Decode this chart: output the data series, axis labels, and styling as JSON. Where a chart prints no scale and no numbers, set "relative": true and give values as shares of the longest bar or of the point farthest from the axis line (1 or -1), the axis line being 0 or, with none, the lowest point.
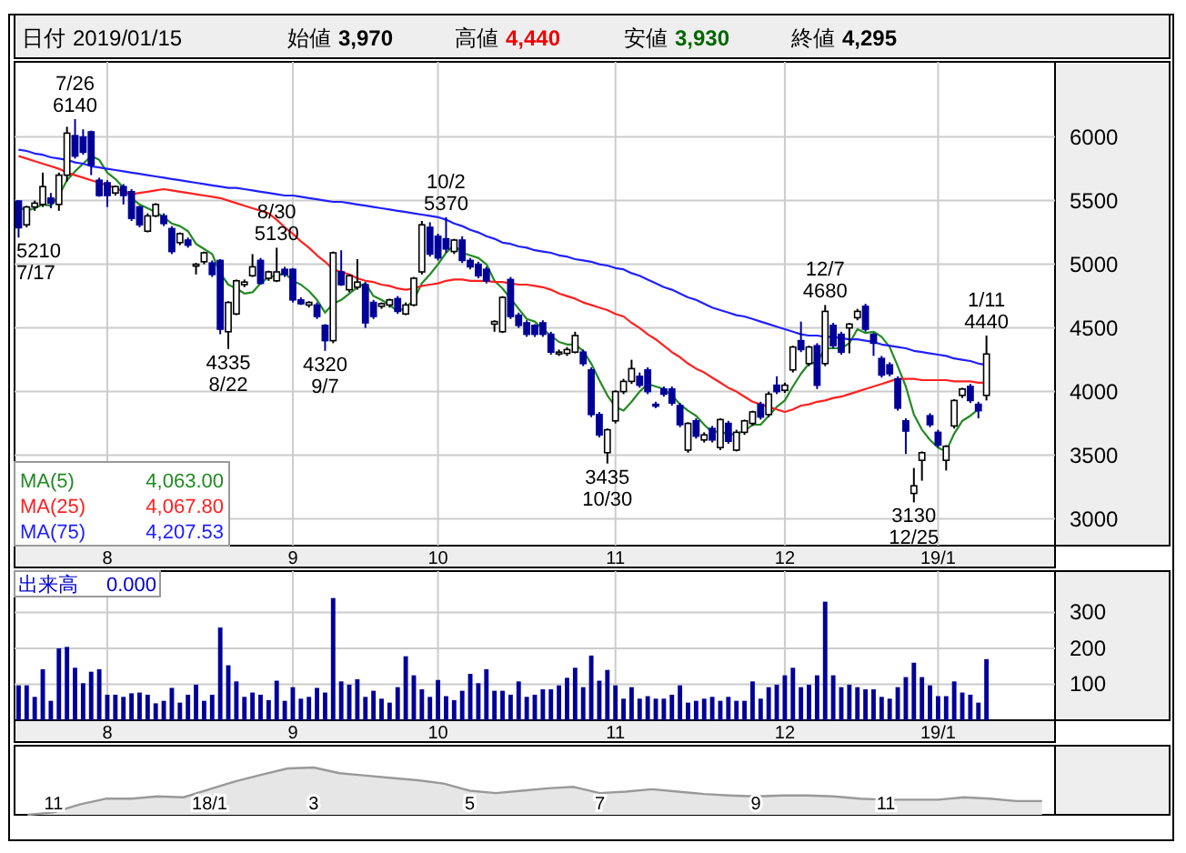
{
  "chart_data": [
    {
      "type": "candlestick",
      "ylim": [
        2790,
        6590
      ],
      "yticks": [
        3000,
        3500,
        4000,
        4500,
        5000,
        5500,
        6000
      ],
      "grid": true,
      "legend": "bottom left",
      "categories": [
        null,
        null,
        null,
        null,
        null,
        null,
        null,
        null,
        null,
        null,
        null,
        "8",
        null,
        null,
        null,
        null,
        null,
        null,
        null,
        null,
        null,
        null,
        null,
        null,
        null,
        null,
        null,
        null,
        null,
        null,
        null,
        null,
        null,
        null,
        "9",
        null,
        null,
        null,
        null,
        null,
        null,
        null,
        null,
        null,
        null,
        null,
        null,
        null,
        null,
        null,
        null,
        null,
        "10",
        null,
        null,
        null,
        null,
        null,
        null,
        null,
        null,
        null,
        null,
        null,
        null,
        null,
        null,
        null,
        null,
        null,
        null,
        null,
        null,
        null,
        "11",
        null,
        null,
        null,
        null,
        null,
        null,
        null,
        null,
        null,
        null,
        null,
        null,
        null,
        null,
        null,
        null,
        null,
        null,
        null,
        null,
        "12",
        null,
        null,
        null,
        null,
        null,
        null,
        null,
        null,
        null,
        null,
        null,
        null,
        null,
        null,
        null,
        null,
        null,
        null,
        "19/1",
        null,
        null,
        null,
        null,
        null,
        null
      ],
      "ohlc": [
        [
          5497,
          5500,
          5210,
          5287
        ],
        [
          5310,
          5460,
          5290,
          5450
        ],
        [
          5450,
          5500,
          5420,
          5480
        ],
        [
          5470,
          5720,
          5450,
          5610
        ],
        [
          5520,
          5560,
          5440,
          5480
        ],
        [
          5470,
          5720,
          5420,
          5700
        ],
        [
          5700,
          6080,
          5650,
          6030
        ],
        [
          6010,
          6140,
          5830,
          5850
        ],
        [
          6000,
          6060,
          5860,
          5880
        ],
        [
          6040,
          6050,
          5700,
          5780
        ],
        [
          5660,
          5680,
          5530,
          5540
        ],
        [
          5640,
          5660,
          5450,
          5540
        ],
        [
          5560,
          5620,
          5540,
          5610
        ],
        [
          5610,
          5630,
          5470,
          5540
        ],
        [
          5570,
          5590,
          5340,
          5360
        ],
        [
          5450,
          5460,
          5290,
          5310
        ],
        [
          5260,
          5400,
          5250,
          5380
        ],
        [
          5380,
          5480,
          5370,
          5470
        ],
        [
          5380,
          5400,
          5300,
          5320
        ],
        [
          5280,
          5300,
          5080,
          5100
        ],
        [
          5170,
          5250,
          5150,
          5240
        ],
        [
          5190,
          5210,
          5130,
          5150
        ],
        [
          4990,
          5010,
          4920,
          5000
        ],
        [
          5020,
          5100,
          5000,
          5090
        ],
        [
          5010,
          5030,
          4900,
          4920
        ],
        [
          5030,
          5040,
          4450,
          4490
        ],
        [
          4470,
          4710,
          4335,
          4700
        ],
        [
          4610,
          4880,
          4600,
          4870
        ],
        [
          4840,
          4880,
          4820,
          4860
        ],
        [
          4910,
          5080,
          4900,
          4980
        ],
        [
          5030,
          5050,
          4840,
          4850
        ],
        [
          4890,
          4950,
          4870,
          4940
        ],
        [
          4870,
          5130,
          4860,
          4940
        ],
        [
          4960,
          4980,
          4900,
          4920
        ],
        [
          4960,
          4970,
          4700,
          4720
        ],
        [
          4720,
          4740,
          4680,
          4690
        ],
        [
          4680,
          4710,
          4660,
          4700
        ],
        [
          4680,
          4700,
          4570,
          4590
        ],
        [
          4520,
          4530,
          4320,
          4400
        ],
        [
          4400,
          5100,
          4380,
          5090
        ],
        [
          4940,
          5110,
          4830,
          4840
        ],
        [
          4800,
          4920,
          4780,
          4910
        ],
        [
          4820,
          5040,
          4800,
          4860
        ],
        [
          4840,
          4860,
          4500,
          4540
        ],
        [
          4700,
          4720,
          4570,
          4590
        ],
        [
          4670,
          4700,
          4650,
          4690
        ],
        [
          4680,
          4730,
          4660,
          4720
        ],
        [
          4730,
          4750,
          4610,
          4630
        ],
        [
          4610,
          4700,
          4600,
          4680
        ],
        [
          4680,
          4900,
          4670,
          4890
        ],
        [
          4940,
          5340,
          4920,
          5310
        ],
        [
          5290,
          5330,
          5060,
          5080
        ],
        [
          5220,
          5240,
          5030,
          5050
        ],
        [
          5200,
          5370,
          5090,
          5120
        ],
        [
          5100,
          5200,
          5080,
          5190
        ],
        [
          5190,
          5220,
          5010,
          5030
        ],
        [
          5030,
          5050,
          4960,
          4980
        ],
        [
          5000,
          5020,
          4890,
          4910
        ],
        [
          4960,
          4980,
          4850,
          4870
        ],
        [
          4530,
          4560,
          4470,
          4550
        ],
        [
          4470,
          4750,
          4460,
          4740
        ],
        [
          4880,
          4900,
          4570,
          4590
        ],
        [
          4600,
          4620,
          4500,
          4520
        ],
        [
          4540,
          4560,
          4430,
          4450
        ],
        [
          4520,
          4530,
          4430,
          4450
        ],
        [
          4540,
          4560,
          4430,
          4450
        ],
        [
          4450,
          4470,
          4290,
          4310
        ],
        [
          4300,
          4330,
          4280,
          4310
        ],
        [
          4300,
          4350,
          4280,
          4330
        ],
        [
          4310,
          4470,
          4300,
          4440
        ],
        [
          4310,
          4330,
          4200,
          4220
        ],
        [
          4170,
          4190,
          3800,
          3820
        ],
        [
          3820,
          3840,
          3640,
          3660
        ],
        [
          3520,
          3710,
          3435,
          3700
        ],
        [
          3770,
          4010,
          3750,
          4000
        ],
        [
          4000,
          4100,
          3980,
          4080
        ],
        [
          4080,
          4250,
          4060,
          4180
        ],
        [
          4120,
          4150,
          4030,
          4050
        ],
        [
          4170,
          4190,
          3980,
          4000
        ],
        [
          3900,
          3920,
          3870,
          3890
        ],
        [
          4020,
          4040,
          3960,
          3980
        ],
        [
          4020,
          4040,
          3890,
          3910
        ],
        [
          3890,
          3910,
          3720,
          3740
        ],
        [
          3540,
          3760,
          3520,
          3750
        ],
        [
          3770,
          3790,
          3630,
          3650
        ],
        [
          3620,
          3680,
          3600,
          3660
        ],
        [
          3710,
          3730,
          3600,
          3620
        ],
        [
          3560,
          3790,
          3540,
          3780
        ],
        [
          3750,
          3770,
          3590,
          3610
        ],
        [
          3540,
          3700,
          3530,
          3680
        ],
        [
          3680,
          3780,
          3660,
          3770
        ],
        [
          3750,
          3850,
          3730,
          3840
        ],
        [
          3900,
          3920,
          3780,
          3800
        ],
        [
          3820,
          4000,
          3800,
          3980
        ],
        [
          4050,
          4120,
          3980,
          4000
        ],
        [
          4010,
          4070,
          3990,
          4050
        ],
        [
          4170,
          4360,
          4150,
          4350
        ],
        [
          4400,
          4550,
          4310,
          4330
        ],
        [
          4220,
          4360,
          4200,
          4350
        ],
        [
          4360,
          4380,
          4020,
          4050
        ],
        [
          4220,
          4680,
          4200,
          4630
        ],
        [
          4520,
          4540,
          4340,
          4360
        ],
        [
          4450,
          4470,
          4290,
          4310
        ],
        [
          4500,
          4540,
          4300,
          4530
        ],
        [
          4580,
          4650,
          4560,
          4630
        ],
        [
          4670,
          4690,
          4470,
          4490
        ],
        [
          4450,
          4460,
          4280,
          4380
        ],
        [
          4260,
          4280,
          4110,
          4130
        ],
        [
          4210,
          4230,
          4120,
          4140
        ],
        [
          4100,
          4120,
          3850,
          3870
        ],
        [
          3770,
          3790,
          3510,
          3690
        ],
        [
          3200,
          3400,
          3130,
          3260
        ],
        [
          3460,
          3530,
          3300,
          3520
        ],
        [
          3810,
          3830,
          3720,
          3740
        ],
        [
          3680,
          3700,
          3560,
          3580
        ],
        [
          3460,
          3580,
          3380,
          3570
        ],
        [
          3730,
          3940,
          3710,
          3930
        ],
        [
          3970,
          4030,
          3950,
          4020
        ],
        [
          4040,
          4060,
          3910,
          3930
        ],
        [
          3900,
          3920,
          3790,
          3850
        ],
        [
          3970,
          4440,
          3930,
          4295
        ]
      ],
      "series": [
        {
          "name": "MA(5)",
          "type": "line",
          "color": "#228b22",
          "values": [
            5450,
            5420,
            5440,
            5470,
            5460,
            5540,
            5660,
            5730,
            5790,
            5850,
            5820,
            5720,
            5670,
            5600,
            5520,
            5470,
            5440,
            5410,
            5370,
            5320,
            5300,
            5260,
            5160,
            5120,
            5080,
            4930,
            4840,
            4810,
            4770,
            4780,
            4850,
            4900,
            4910,
            4930,
            4870,
            4840,
            4790,
            4720,
            4620,
            4690,
            4720,
            4770,
            4820,
            4850,
            4750,
            4720,
            4680,
            4630,
            4660,
            4720,
            4850,
            4920,
            5000,
            5090,
            5150,
            5090,
            5070,
            5050,
            5000,
            4870,
            4810,
            4730,
            4650,
            4570,
            4550,
            4490,
            4440,
            4390,
            4370,
            4370,
            4320,
            4220,
            4090,
            3970,
            3880,
            3850,
            3920,
            4000,
            4060,
            4040,
            4020,
            3970,
            3900,
            3850,
            3810,
            3740,
            3680,
            3690,
            3660,
            3670,
            3690,
            3740,
            3740,
            3810,
            3880,
            3930,
            4040,
            4140,
            4220,
            4230,
            4340,
            4340,
            4340,
            4380,
            4490,
            4460,
            4470,
            4430,
            4350,
            4200,
            4040,
            3820,
            3700,
            3620,
            3560,
            3530,
            3670,
            3770,
            3810,
            3860,
            null
          ]
        },
        {
          "name": "MA(25)",
          "type": "line",
          "color": "#ff2020",
          "values": [
            5850,
            5830,
            5810,
            5790,
            5770,
            5750,
            5720,
            5700,
            5680,
            5660,
            5640,
            5620,
            5600,
            5570,
            5550,
            5560,
            5570,
            5580,
            5590,
            5580,
            5570,
            5560,
            5550,
            5540,
            5530,
            5520,
            5500,
            5480,
            5460,
            5440,
            5420,
            5400,
            5350,
            5290,
            5240,
            5180,
            5130,
            5070,
            5020,
            4960,
            4940,
            4920,
            4890,
            4870,
            4860,
            4840,
            4830,
            4810,
            4800,
            4810,
            4830,
            4840,
            4850,
            4870,
            4880,
            4880,
            4870,
            4870,
            4870,
            4860,
            4860,
            4850,
            4840,
            4840,
            4830,
            4820,
            4800,
            4770,
            4750,
            4730,
            4700,
            4680,
            4660,
            4640,
            4610,
            4590,
            4540,
            4500,
            4450,
            4410,
            4360,
            4310,
            4270,
            4220,
            4180,
            4150,
            4110,
            4070,
            4030,
            4000,
            3960,
            3920,
            3900,
            3880,
            3860,
            3840,
            3860,
            3890,
            3900,
            3920,
            3930,
            3950,
            3960,
            3980,
            4000,
            4020,
            4040,
            4060,
            4080,
            4100,
            4100,
            4100,
            4090,
            4090,
            4090,
            4090,
            4080,
            4080,
            4080,
            4070,
            4070
          ]
        },
        {
          "name": "MA(75)",
          "type": "line",
          "color": "#2020ff",
          "values": [
            5900,
            5890,
            5870,
            5860,
            5840,
            5830,
            5820,
            5800,
            5790,
            5770,
            5760,
            5750,
            5740,
            5730,
            5720,
            5710,
            5700,
            5690,
            5680,
            5670,
            5660,
            5650,
            5640,
            5630,
            5620,
            5610,
            5600,
            5600,
            5590,
            5580,
            5570,
            5560,
            5550,
            5540,
            5540,
            5530,
            5520,
            5510,
            5500,
            5490,
            5490,
            5480,
            5470,
            5460,
            5450,
            5440,
            5430,
            5420,
            5410,
            5400,
            5390,
            5380,
            5370,
            5350,
            5320,
            5300,
            5270,
            5250,
            5220,
            5200,
            5170,
            5160,
            5140,
            5130,
            5110,
            5100,
            5090,
            5070,
            5060,
            5040,
            5030,
            5020,
            5000,
            4990,
            4970,
            4960,
            4930,
            4910,
            4880,
            4850,
            4820,
            4800,
            4770,
            4740,
            4720,
            4690,
            4660,
            4640,
            4620,
            4600,
            4590,
            4570,
            4550,
            4530,
            4510,
            4490,
            4470,
            4450,
            4440,
            4440,
            4430,
            4430,
            4420,
            4410,
            4410,
            4400,
            4390,
            4370,
            4360,
            4350,
            4340,
            4320,
            4310,
            4300,
            4290,
            4280,
            4260,
            4250,
            4240,
            4220,
            4210
          ]
        }
      ],
      "annotations": [
        "日付 2019/01/15",
        "始値 3,970",
        "高値 4,440",
        "安値 3,930",
        "終値 4,295",
        "4,063.00",
        "4,067.80",
        "4,207.53",
        "7/26\n6140",
        "5210\n7/17",
        "8/30\n5130",
        "4335\n8/22",
        "4320\n9/7",
        "10/2\n5370",
        "3435\n10/30",
        "12/7\n4680",
        "3130\n12/25",
        "1/11\n4440"
      ]
    },
    {
      "type": "bar",
      "color": "#000099",
      "ylim": [
        0,
        415
      ],
      "yticks": [
        100,
        200,
        300
      ],
      "grid": true,
      "categories": [
        null,
        null,
        null,
        null,
        null,
        null,
        null,
        null,
        null,
        null,
        null,
        "8",
        null,
        null,
        null,
        null,
        null,
        null,
        null,
        null,
        null,
        null,
        null,
        null,
        null,
        null,
        null,
        null,
        null,
        null,
        null,
        null,
        null,
        null,
        "9",
        null,
        null,
        null,
        null,
        null,
        null,
        null,
        null,
        null,
        null,
        null,
        null,
        null,
        null,
        null,
        null,
        null,
        "10",
        null,
        null,
        null,
        null,
        null,
        null,
        null,
        null,
        null,
        null,
        null,
        null,
        null,
        null,
        null,
        null,
        null,
        null,
        null,
        null,
        null,
        "11",
        null,
        null,
        null,
        null,
        null,
        null,
        null,
        null,
        null,
        null,
        null,
        null,
        null,
        null,
        null,
        null,
        null,
        null,
        null,
        null,
        "12",
        null,
        null,
        null,
        null,
        null,
        null,
        null,
        null,
        null,
        null,
        null,
        null,
        null,
        null,
        null,
        null,
        null,
        null,
        "19/1",
        null,
        null,
        null,
        null,
        null,
        null
      ],
      "values": [
        97,
        97,
        65,
        142,
        54,
        200,
        204,
        146,
        103,
        135,
        142,
        71,
        71,
        65,
        75,
        77,
        71,
        47,
        54,
        90,
        49,
        71,
        99,
        54,
        71,
        258,
        153,
        108,
        65,
        77,
        71,
        56,
        110,
        54,
        92,
        60,
        65,
        90,
        77,
        340,
        108,
        99,
        114,
        65,
        82,
        60,
        49,
        92,
        178,
        125,
        86,
        65,
        112,
        67,
        56,
        82,
        129,
        103,
        142,
        82,
        82,
        71,
        108,
        65,
        71,
        86,
        86,
        97,
        118,
        146,
        92,
        180,
        110,
        140,
        97,
        60,
        92,
        60,
        67,
        60,
        60,
        71,
        97,
        49,
        54,
        60,
        65,
        54,
        65,
        54,
        54,
        108,
        60,
        92,
        99,
        125,
        146,
        92,
        99,
        125,
        330,
        125,
        92,
        99,
        92,
        86,
        86,
        65,
        60,
        92,
        120,
        160,
        120,
        97,
        67,
        67,
        108,
        77,
        71,
        49,
        170
      ],
      "annotations": [
        "出来高 0.000"
      ]
    },
    {
      "type": "area",
      "relative": true,
      "color": "#999999",
      "categories": [
        null,
        "11",
        null,
        null,
        null,
        null,
        null,
        "18/1",
        null,
        null,
        null,
        "3",
        null,
        null,
        null,
        null,
        null,
        "5",
        null,
        null,
        null,
        null,
        "7",
        null,
        null,
        null,
        null,
        null,
        "9",
        null,
        null,
        null,
        null,
        "11",
        null,
        null,
        null,
        null,
        null,
        null
      ],
      "values": [
        0,
        0.05,
        0.22,
        0.34,
        0.34,
        0.39,
        0.37,
        0.54,
        0.71,
        0.85,
        0.98,
        1,
        0.88,
        0.83,
        0.78,
        0.73,
        0.66,
        0.51,
        0.46,
        0.51,
        0.56,
        0.59,
        0.46,
        0.49,
        0.54,
        0.49,
        0.44,
        0.41,
        0.39,
        0.41,
        0.41,
        0.39,
        0.34,
        0.32,
        0.32,
        0.32,
        0.37,
        0.34,
        0.29,
        0.29
      ]
    }
  ]
}
